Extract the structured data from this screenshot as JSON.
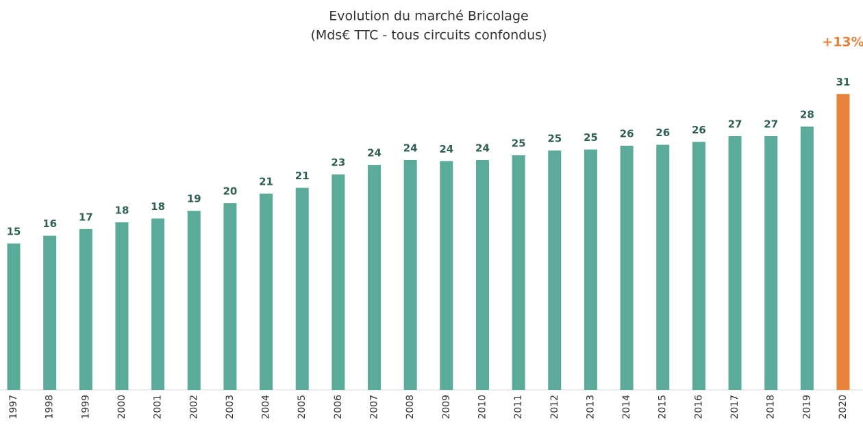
{
  "chart_data": {
    "type": "bar",
    "title": "Evolution du marché Bricolage",
    "subtitle": "(Mds€ TTC - tous circuits confondus)",
    "annotation": "+13%",
    "categories": [
      "1997",
      "1998",
      "1999",
      "2000",
      "2001",
      "2002",
      "2003",
      "2004",
      "2005",
      "2006",
      "2007",
      "2008",
      "2009",
      "2010",
      "2011",
      "2012",
      "2013",
      "2014",
      "2015",
      "2016",
      "2017",
      "2018",
      "2019",
      "2020"
    ],
    "values": [
      15.3,
      16.1,
      16.8,
      17.5,
      17.9,
      18.7,
      19.5,
      20.5,
      21.1,
      22.5,
      23.5,
      24.0,
      23.9,
      24.0,
      24.5,
      25.0,
      25.1,
      25.5,
      25.6,
      25.9,
      26.5,
      26.5,
      27.5,
      30.9
    ],
    "value_labels": [
      "15",
      "16",
      "17",
      "18",
      "18",
      "19",
      "20",
      "21",
      "21",
      "23",
      "24",
      "24",
      "24",
      "24",
      "25",
      "25",
      "25",
      "26",
      "26",
      "26",
      "27",
      "27",
      "28",
      "31"
    ],
    "colors": [
      "#5aab99",
      "#5aab99",
      "#5aab99",
      "#5aab99",
      "#5aab99",
      "#5aab99",
      "#5aab99",
      "#5aab99",
      "#5aab99",
      "#5aab99",
      "#5aab99",
      "#5aab99",
      "#5aab99",
      "#5aab99",
      "#5aab99",
      "#5aab99",
      "#5aab99",
      "#5aab99",
      "#5aab99",
      "#5aab99",
      "#5aab99",
      "#5aab99",
      "#5aab99",
      "#e8813a"
    ],
    "annotation_color": "#e8813a",
    "ylim": [
      0,
      32
    ]
  }
}
